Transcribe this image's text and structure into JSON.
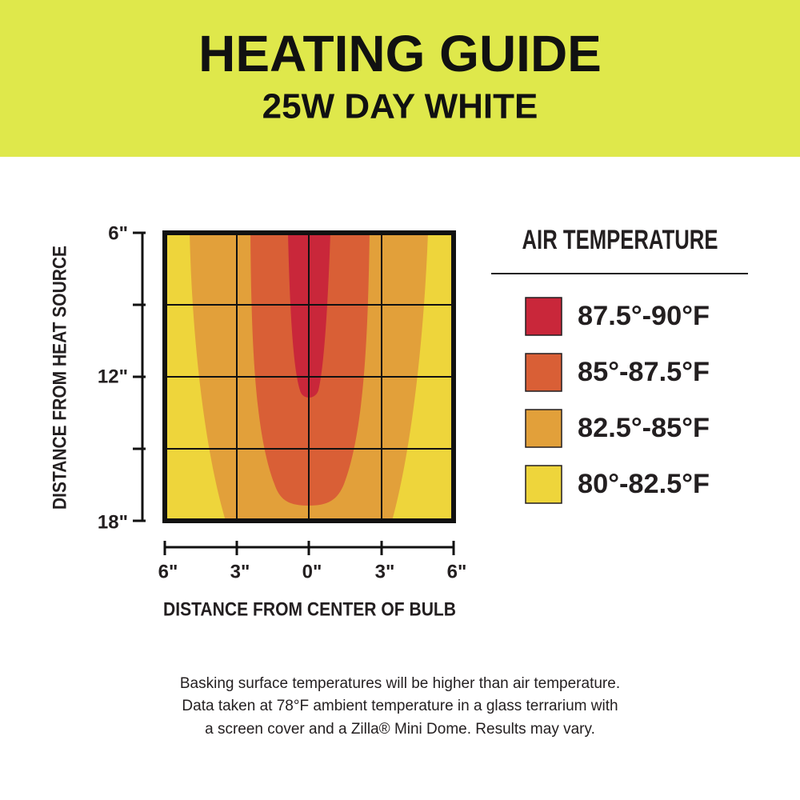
{
  "header": {
    "title": "HEATING GUIDE",
    "subtitle": "25W DAY WHITE"
  },
  "y_axis": {
    "label": "DISTANCE FROM HEAT SOURCE",
    "ticks": [
      "6\"",
      "12\"",
      "18\""
    ]
  },
  "x_axis": {
    "label": "DISTANCE FROM CENTER OF BULB",
    "ticks": [
      "6\"",
      "3\"",
      "0\"",
      "3\"",
      "6\""
    ]
  },
  "legend": {
    "title": "AIR TEMPERATURE",
    "items": [
      {
        "label": "87.5°-90°F",
        "color": "#c9273a"
      },
      {
        "label": "85°-87.5°F",
        "color": "#d95f36"
      },
      {
        "label": "82.5°-85°F",
        "color": "#e2a03a"
      },
      {
        "label": "80°-82.5°F",
        "color": "#eed53b"
      }
    ]
  },
  "footnote": [
    "Basking surface temperatures will be higher than air temperature.",
    "Data taken at 78°F ambient temperature in a glass terrarium with",
    "a screen cover and a Zilla® Mini Dome. Results may vary."
  ]
}
